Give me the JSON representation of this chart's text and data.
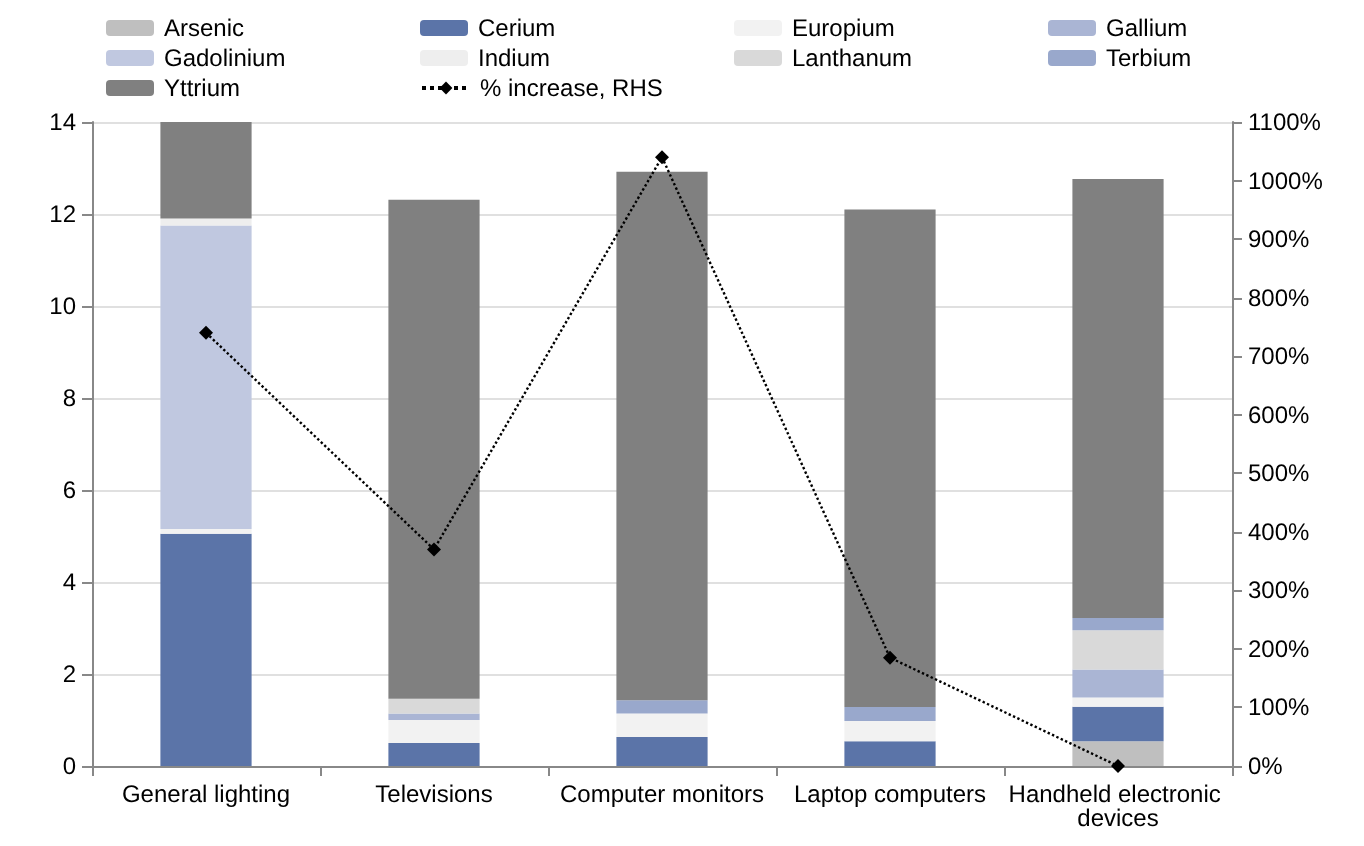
{
  "chart_data": {
    "type": "bar",
    "stacked": true,
    "categories": [
      "General lighting",
      "Televisions",
      "Computer monitors",
      "Laptop computers",
      "Handheld electronic devices"
    ],
    "series": [
      {
        "name": "Arsenic",
        "color": "#bfbfbf",
        "values": [
          null,
          null,
          null,
          null,
          0.54
        ]
      },
      {
        "name": "Cerium",
        "color": "#5b74a8",
        "values": [
          5.05,
          0.5,
          0.63,
          0.54,
          0.75
        ]
      },
      {
        "name": "Europium",
        "color": "#f2f2f2",
        "values": [
          0.1,
          0.5,
          0.51,
          0.44,
          0.2
        ]
      },
      {
        "name": "Gallium",
        "color": "#aab5d4",
        "values": [
          null,
          0.14,
          null,
          null,
          0.61
        ]
      },
      {
        "name": "Gadolinium",
        "color": "#c0c8e0",
        "values": [
          6.6,
          null,
          null,
          null,
          null
        ]
      },
      {
        "name": "Indium",
        "color": "#eeeeee",
        "values": [
          0.15,
          null,
          null,
          null,
          null
        ]
      },
      {
        "name": "Lanthanum",
        "color": "#d9d9d9",
        "values": [
          null,
          0.32,
          null,
          null,
          0.85
        ]
      },
      {
        "name": "Terbium",
        "color": "#99a8cc",
        "values": [
          null,
          null,
          0.29,
          0.3,
          0.27
        ]
      },
      {
        "name": "Yttrium",
        "color": "#808080",
        "values": [
          2.1,
          10.85,
          11.49,
          10.82,
          9.54
        ]
      },
      {
        "name": "% increase, RHS",
        "type": "line",
        "axis": "y2",
        "color": "#000000",
        "marker": "diamond",
        "line_style": "dotted",
        "values": [
          740,
          370,
          1040,
          185,
          0
        ]
      }
    ],
    "ylim": [
      0,
      14
    ],
    "yticks": [
      0,
      2,
      4,
      6,
      8,
      10,
      12,
      14
    ],
    "y2lim": [
      0,
      1100
    ],
    "y2ticks": [
      {
        "value": 0,
        "label": "0%"
      },
      {
        "value": 100,
        "label": "100%"
      },
      {
        "value": 200,
        "label": "200%"
      },
      {
        "value": 300,
        "label": "300%"
      },
      {
        "value": 400,
        "label": "400%"
      },
      {
        "value": 500,
        "label": "500%"
      },
      {
        "value": 600,
        "label": "600%"
      },
      {
        "value": 700,
        "label": "700%"
      },
      {
        "value": 800,
        "label": "800%"
      },
      {
        "value": 900,
        "label": "900%"
      },
      {
        "value": 1000,
        "label": "1000%"
      },
      {
        "value": 1100,
        "label": "1100%"
      }
    ],
    "grid": "y",
    "legend": "top"
  }
}
